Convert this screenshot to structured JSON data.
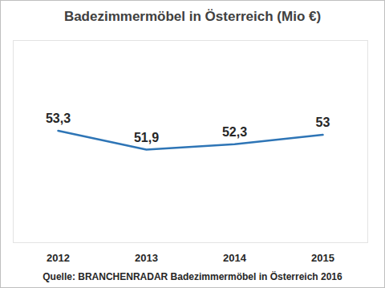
{
  "chart_data": {
    "type": "line",
    "title": "Badezimmermöbel in Österreich (Mio €)",
    "caption": "Quelle: BRANCHENRADAR  Badezimmermöbel in Österreich 2016",
    "categories": [
      "2012",
      "2013",
      "2014",
      "2015"
    ],
    "values": [
      53.3,
      51.9,
      52.3,
      53
    ],
    "value_labels": [
      "53,3",
      "51,9",
      "52,3",
      "53"
    ],
    "color": "#2e75b6",
    "ylim": [
      45,
      60
    ],
    "grid": false,
    "data_labels": true,
    "tick_labels": "x"
  }
}
